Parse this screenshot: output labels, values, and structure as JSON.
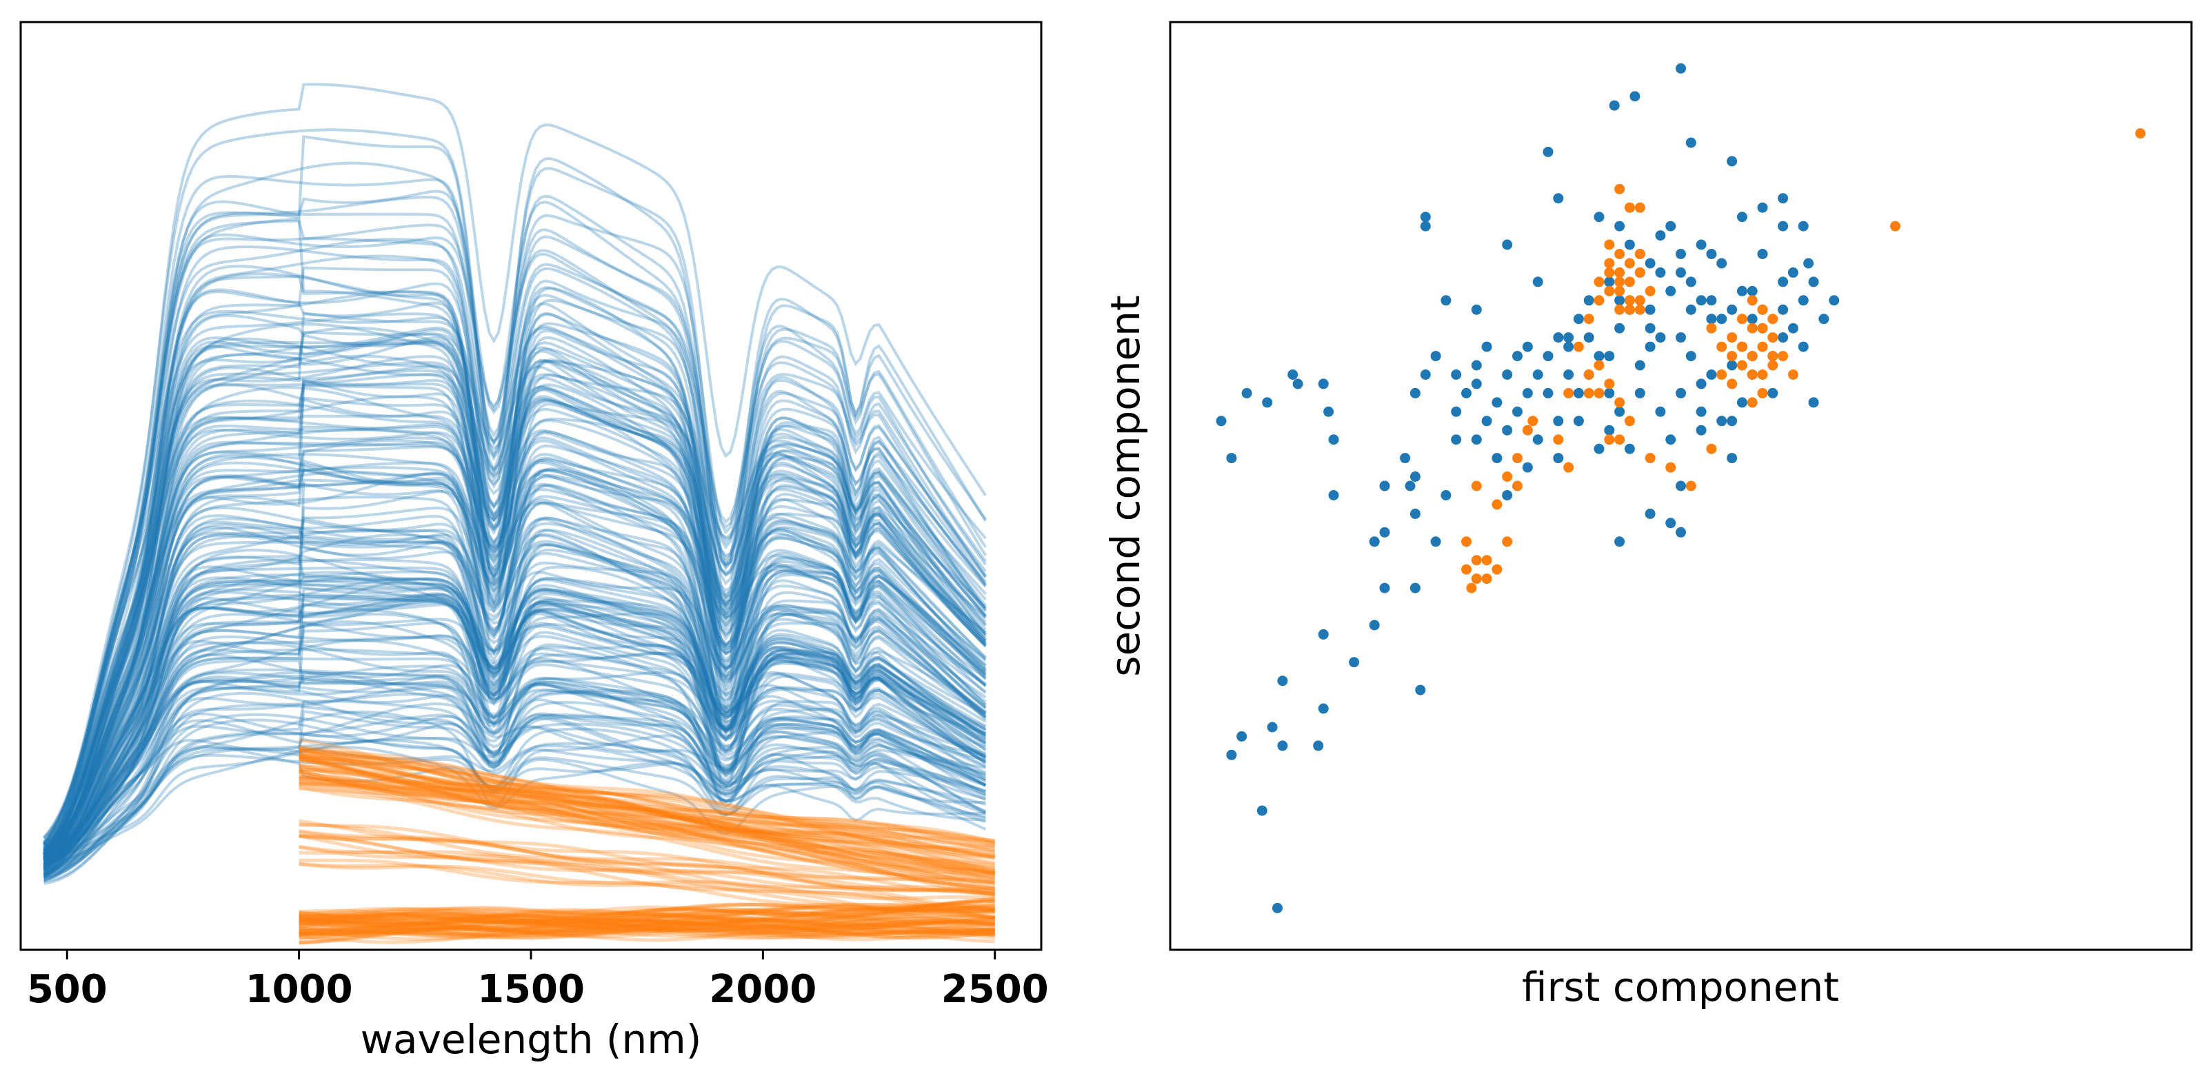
{
  "chart_data": [
    {
      "type": "line",
      "title": "",
      "xlabel": "wavelength (nm)",
      "ylabel": "",
      "xlim": [
        400,
        2600
      ],
      "ylim": [
        0,
        1
      ],
      "xticks": [
        500,
        1000,
        1500,
        2000,
        2500
      ],
      "xtick_labels": [
        "500",
        "1000",
        "1500",
        "2000",
        "2500"
      ],
      "yticks_visible": false,
      "grid": false,
      "legend": "none",
      "series": [
        {
          "name": "blue spectra",
          "color": "#1f77b4",
          "x_range": [
            450,
            2480
          ],
          "count": 170,
          "alpha": 0.3,
          "absorption_features_nm": [
            950,
            1400,
            1900,
            2200
          ]
        },
        {
          "name": "orange spectra",
          "color": "#ff7f0e",
          "x_range": [
            1000,
            2500
          ],
          "count": 120,
          "alpha": 0.3,
          "upper_band": {
            "start": 0.2,
            "end": 0.09
          },
          "lower_band": {
            "start": 0.02,
            "end": 0.02
          }
        }
      ]
    },
    {
      "type": "scatter",
      "title": "",
      "xlabel": "first component",
      "ylabel": "second component",
      "xlim": [
        0,
        1
      ],
      "ylim": [
        0,
        1
      ],
      "ticks_visible": false,
      "grid": false,
      "legend": "none",
      "series": [
        {
          "name": "blue group",
          "color": "#1f77b4",
          "points": [
            [
              0.05,
              0.57
            ],
            [
              0.06,
              0.53
            ],
            [
              0.075,
              0.6
            ],
            [
              0.095,
              0.59
            ],
            [
              0.12,
              0.62
            ],
            [
              0.125,
              0.61
            ],
            [
              0.15,
              0.61
            ],
            [
              0.155,
              0.58
            ],
            [
              0.16,
              0.55
            ],
            [
              0.16,
              0.49
            ],
            [
              0.2,
              0.44
            ],
            [
              0.21,
              0.5
            ],
            [
              0.21,
              0.45
            ],
            [
              0.23,
              0.53
            ],
            [
              0.24,
              0.51
            ],
            [
              0.24,
              0.6
            ],
            [
              0.25,
              0.62
            ],
            [
              0.26,
              0.44
            ],
            [
              0.24,
              0.39
            ],
            [
              0.21,
              0.39
            ],
            [
              0.24,
              0.47
            ],
            [
              0.235,
              0.5
            ],
            [
              0.27,
              0.49
            ],
            [
              0.28,
              0.55
            ],
            [
              0.29,
              0.6
            ],
            [
              0.3,
              0.63
            ],
            [
              0.31,
              0.57
            ],
            [
              0.32,
              0.59
            ],
            [
              0.33,
              0.62
            ],
            [
              0.34,
              0.64
            ],
            [
              0.35,
              0.65
            ],
            [
              0.36,
              0.62
            ],
            [
              0.37,
              0.6
            ],
            [
              0.38,
              0.57
            ],
            [
              0.39,
              0.66
            ],
            [
              0.4,
              0.68
            ],
            [
              0.41,
              0.62
            ],
            [
              0.42,
              0.64
            ],
            [
              0.43,
              0.6
            ],
            [
              0.44,
              0.67
            ],
            [
              0.45,
              0.7
            ],
            [
              0.46,
              0.63
            ],
            [
              0.47,
              0.69
            ],
            [
              0.48,
              0.58
            ],
            [
              0.49,
              0.55
            ],
            [
              0.5,
              0.66
            ],
            [
              0.51,
              0.69
            ],
            [
              0.52,
              0.61
            ],
            [
              0.53,
              0.68
            ],
            [
              0.54,
              0.57
            ],
            [
              0.55,
              0.63
            ],
            [
              0.56,
              0.65
            ],
            [
              0.57,
              0.71
            ],
            [
              0.58,
              0.67
            ],
            [
              0.59,
              0.6
            ],
            [
              0.6,
              0.69
            ],
            [
              0.61,
              0.73
            ],
            [
              0.62,
              0.65
            ],
            [
              0.63,
              0.59
            ],
            [
              0.64,
              0.68
            ],
            [
              0.65,
              0.7
            ],
            [
              0.55,
              0.53
            ],
            [
              0.5,
              0.5
            ],
            [
              0.47,
              0.47
            ],
            [
              0.44,
              0.44
            ],
            [
              0.42,
              0.54
            ],
            [
              0.38,
              0.66
            ],
            [
              0.36,
              0.72
            ],
            [
              0.33,
              0.76
            ],
            [
              0.3,
              0.69
            ],
            [
              0.27,
              0.7
            ],
            [
              0.26,
              0.64
            ],
            [
              0.37,
              0.86
            ],
            [
              0.38,
              0.81
            ],
            [
              0.435,
              0.91
            ],
            [
              0.455,
              0.92
            ],
            [
              0.5,
              0.95
            ],
            [
              0.51,
              0.87
            ],
            [
              0.55,
              0.85
            ],
            [
              0.56,
              0.79
            ],
            [
              0.58,
              0.8
            ],
            [
              0.6,
              0.78
            ],
            [
              0.6,
              0.81
            ],
            [
              0.62,
              0.78
            ],
            [
              0.625,
              0.74
            ],
            [
              0.25,
              0.79
            ],
            [
              0.25,
              0.78
            ],
            [
              0.46,
              0.73
            ],
            [
              0.47,
              0.74
            ],
            [
              0.45,
              0.76
            ],
            [
              0.48,
              0.77
            ],
            [
              0.44,
              0.78
            ],
            [
              0.42,
              0.79
            ],
            [
              0.49,
              0.78
            ],
            [
              0.5,
              0.73
            ],
            [
              0.52,
              0.76
            ],
            [
              0.54,
              0.74
            ],
            [
              0.52,
              0.7
            ],
            [
              0.53,
              0.75
            ],
            [
              0.56,
              0.71
            ],
            [
              0.58,
              0.75
            ],
            [
              0.6,
              0.72
            ],
            [
              0.2,
              0.35
            ],
            [
              0.1,
              0.24
            ],
            [
              0.11,
              0.29
            ],
            [
              0.15,
              0.26
            ],
            [
              0.15,
              0.34
            ],
            [
              0.18,
              0.31
            ],
            [
              0.06,
              0.21
            ],
            [
              0.11,
              0.22
            ],
            [
              0.07,
              0.23
            ],
            [
              0.09,
              0.15
            ],
            [
              0.105,
              0.045
            ],
            [
              0.145,
              0.22
            ],
            [
              0.245,
              0.28
            ],
            [
              0.33,
              0.49
            ],
            [
              0.35,
              0.52
            ],
            [
              0.38,
              0.53
            ],
            [
              0.4,
              0.6
            ],
            [
              0.45,
              0.54
            ],
            [
              0.49,
              0.46
            ],
            [
              0.5,
              0.45
            ],
            [
              0.52,
              0.56
            ],
            [
              0.55,
              0.57
            ],
            [
              0.31,
              0.65
            ],
            [
              0.34,
              0.58
            ],
            [
              0.37,
              0.64
            ],
            [
              0.41,
              0.66
            ],
            [
              0.43,
              0.56
            ],
            [
              0.46,
              0.6
            ],
            [
              0.53,
              0.62
            ],
            [
              0.57,
              0.62
            ],
            [
              0.59,
              0.64
            ],
            [
              0.61,
              0.67
            ],
            [
              0.62,
              0.7
            ],
            [
              0.28,
              0.58
            ],
            [
              0.3,
              0.55
            ],
            [
              0.32,
              0.53
            ],
            [
              0.35,
              0.6
            ],
            [
              0.39,
              0.62
            ],
            [
              0.43,
              0.64
            ],
            [
              0.48,
              0.66
            ],
            [
              0.51,
              0.64
            ],
            [
              0.54,
              0.68
            ],
            [
              0.57,
              0.68
            ],
            [
              0.6,
              0.66
            ],
            [
              0.28,
              0.62
            ],
            [
              0.3,
              0.61
            ],
            [
              0.33,
              0.56
            ],
            [
              0.36,
              0.55
            ],
            [
              0.4,
              0.57
            ],
            [
              0.44,
              0.58
            ],
            [
              0.47,
              0.65
            ],
            [
              0.5,
              0.6
            ],
            [
              0.52,
              0.58
            ],
            [
              0.56,
              0.59
            ],
            [
              0.58,
              0.69
            ],
            [
              0.63,
              0.72
            ],
            [
              0.44,
              0.7
            ],
            [
              0.46,
              0.75
            ],
            [
              0.49,
              0.71
            ],
            [
              0.5,
              0.75
            ],
            [
              0.55,
              0.69
            ],
            [
              0.57,
              0.64
            ],
            [
              0.43,
              0.72
            ],
            [
              0.48,
              0.73
            ],
            [
              0.51,
              0.72
            ],
            [
              0.53,
              0.7
            ],
            [
              0.39,
              0.65
            ],
            [
              0.41,
              0.7
            ],
            [
              0.45,
              0.69
            ],
            [
              0.47,
              0.67
            ]
          ]
        },
        {
          "name": "orange group",
          "color": "#ff7f0e",
          "points": [
            [
              0.95,
              0.88
            ],
            [
              0.71,
              0.78
            ],
            [
              0.44,
              0.82
            ],
            [
              0.45,
              0.8
            ],
            [
              0.46,
              0.8
            ],
            [
              0.43,
              0.76
            ],
            [
              0.44,
              0.75
            ],
            [
              0.45,
              0.74
            ],
            [
              0.46,
              0.75
            ],
            [
              0.43,
              0.73
            ],
            [
              0.44,
              0.72
            ],
            [
              0.45,
              0.72
            ],
            [
              0.46,
              0.73
            ],
            [
              0.42,
              0.72
            ],
            [
              0.43,
              0.74
            ],
            [
              0.44,
              0.73
            ],
            [
              0.45,
              0.7
            ],
            [
              0.44,
              0.71
            ],
            [
              0.43,
              0.71
            ],
            [
              0.47,
              0.71
            ],
            [
              0.46,
              0.7
            ],
            [
              0.44,
              0.69
            ],
            [
              0.46,
              0.69
            ],
            [
              0.45,
              0.69
            ],
            [
              0.42,
              0.7
            ],
            [
              0.57,
              0.7
            ],
            [
              0.58,
              0.69
            ],
            [
              0.59,
              0.68
            ],
            [
              0.56,
              0.68
            ],
            [
              0.57,
              0.67
            ],
            [
              0.58,
              0.67
            ],
            [
              0.59,
              0.66
            ],
            [
              0.55,
              0.66
            ],
            [
              0.56,
              0.65
            ],
            [
              0.57,
              0.64
            ],
            [
              0.58,
              0.65
            ],
            [
              0.59,
              0.64
            ],
            [
              0.55,
              0.64
            ],
            [
              0.56,
              0.63
            ],
            [
              0.57,
              0.62
            ],
            [
              0.58,
              0.62
            ],
            [
              0.59,
              0.63
            ],
            [
              0.54,
              0.62
            ],
            [
              0.55,
              0.61
            ],
            [
              0.58,
              0.6
            ],
            [
              0.6,
              0.64
            ],
            [
              0.61,
              0.62
            ],
            [
              0.53,
              0.67
            ],
            [
              0.54,
              0.65
            ],
            [
              0.41,
              0.68
            ],
            [
              0.4,
              0.65
            ],
            [
              0.41,
              0.62
            ],
            [
              0.42,
              0.63
            ],
            [
              0.43,
              0.61
            ],
            [
              0.41,
              0.6
            ],
            [
              0.39,
              0.6
            ],
            [
              0.42,
              0.6
            ],
            [
              0.44,
              0.59
            ],
            [
              0.57,
              0.59
            ],
            [
              0.45,
              0.57
            ],
            [
              0.44,
              0.55
            ],
            [
              0.43,
              0.55
            ],
            [
              0.47,
              0.53
            ],
            [
              0.49,
              0.52
            ],
            [
              0.51,
              0.5
            ],
            [
              0.53,
              0.54
            ],
            [
              0.38,
              0.55
            ],
            [
              0.39,
              0.52
            ],
            [
              0.35,
              0.56
            ],
            [
              0.34,
              0.53
            ],
            [
              0.33,
              0.51
            ],
            [
              0.34,
              0.5
            ],
            [
              0.32,
              0.48
            ],
            [
              0.3,
              0.5
            ],
            [
              0.29,
              0.44
            ],
            [
              0.3,
              0.42
            ],
            [
              0.31,
              0.42
            ],
            [
              0.33,
              0.44
            ],
            [
              0.32,
              0.41
            ],
            [
              0.31,
              0.4
            ],
            [
              0.3,
              0.4
            ],
            [
              0.29,
              0.41
            ],
            [
              0.295,
              0.39
            ],
            [
              0.355,
              0.57
            ]
          ]
        }
      ]
    }
  ]
}
